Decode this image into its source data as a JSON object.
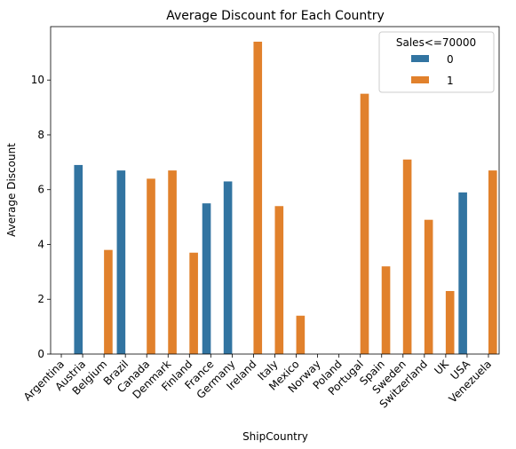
{
  "chart_data": {
    "type": "bar",
    "title": "Average Discount for Each Country",
    "xlabel": "ShipCountry",
    "ylabel": "Average Discount",
    "ylim": [
      0,
      11.95
    ],
    "yticks": [
      0,
      2,
      4,
      6,
      8,
      10
    ],
    "categories": [
      "Argentina",
      "Austria",
      "Belgium",
      "Brazil",
      "Canada",
      "Denmark",
      "Finland",
      "France",
      "Germany",
      "Ireland",
      "Italy",
      "Mexico",
      "Norway",
      "Poland",
      "Portugal",
      "Spain",
      "Sweden",
      "Switzerland",
      "UK",
      "USA",
      "Venezuela"
    ],
    "legend": {
      "title": "Sales<=70000",
      "position": "top-right"
    },
    "series": [
      {
        "name": "0",
        "color": "#3274a1",
        "values": [
          0,
          6.9,
          0,
          6.7,
          0,
          0,
          0,
          5.5,
          6.3,
          0,
          0,
          0,
          0,
          0,
          0,
          0,
          0,
          0,
          0,
          5.9,
          0
        ]
      },
      {
        "name": "1",
        "color": "#e1812c",
        "values": [
          0,
          0,
          3.8,
          0,
          6.4,
          6.7,
          3.7,
          0,
          0,
          11.4,
          5.4,
          1.4,
          0,
          0,
          9.5,
          3.2,
          7.1,
          4.9,
          2.3,
          0,
          6.7
        ]
      }
    ]
  }
}
